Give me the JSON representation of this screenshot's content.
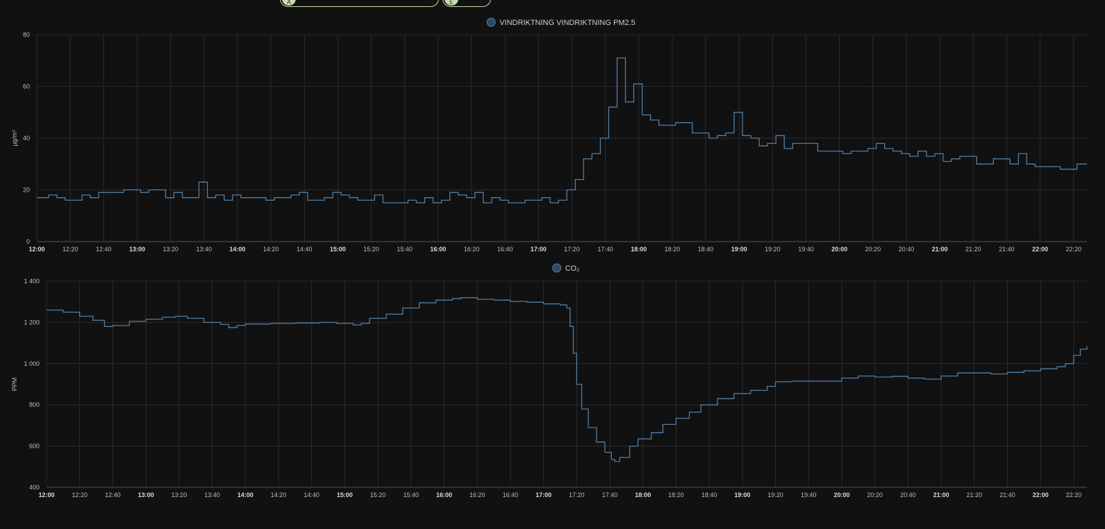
{
  "top_chips": [
    {
      "label": "A",
      "color": "#c9ddb0"
    },
    {
      "label": "E",
      "color": "#c9ddb0"
    }
  ],
  "chart_data": [
    {
      "type": "line",
      "step": true,
      "legend": "VINDRIKTNING VINDRIKTNING PM2.5",
      "ylabel": "µg/m³",
      "ylim": [
        0,
        80
      ],
      "yticks": [
        0,
        20,
        40,
        60,
        80
      ],
      "ytick_labels": [
        "0",
        "20",
        "40",
        "60",
        "80"
      ],
      "x_range": [
        "12:00",
        "22:28"
      ],
      "xticks": [
        "12:00",
        "12:20",
        "12:40",
        "13:00",
        "13:20",
        "13:40",
        "14:00",
        "14:20",
        "14:40",
        "15:00",
        "15:20",
        "15:40",
        "16:00",
        "16:20",
        "16:40",
        "17:00",
        "17:20",
        "17:40",
        "18:00",
        "18:20",
        "18:40",
        "19:00",
        "19:20",
        "19:40",
        "20:00",
        "20:20",
        "20:40",
        "21:00",
        "21:20",
        "21:40",
        "22:00",
        "22:20"
      ],
      "color": "#4f7fa8",
      "series": [
        {
          "values": [
            [
              "12:00",
              17
            ],
            [
              "12:07",
              18
            ],
            [
              "12:12",
              17
            ],
            [
              "12:17",
              16
            ],
            [
              "12:27",
              18
            ],
            [
              "12:32",
              17
            ],
            [
              "12:37",
              19
            ],
            [
              "12:52",
              20
            ],
            [
              "13:02",
              19
            ],
            [
              "13:07",
              20
            ],
            [
              "13:17",
              17
            ],
            [
              "13:22",
              19
            ],
            [
              "13:27",
              17
            ],
            [
              "13:37",
              23
            ],
            [
              "13:42",
              17
            ],
            [
              "13:47",
              18
            ],
            [
              "13:52",
              16
            ],
            [
              "13:57",
              18
            ],
            [
              "14:02",
              17
            ],
            [
              "14:17",
              16
            ],
            [
              "14:22",
              17
            ],
            [
              "14:32",
              18
            ],
            [
              "14:37",
              19
            ],
            [
              "14:42",
              16
            ],
            [
              "14:52",
              17
            ],
            [
              "14:57",
              19
            ],
            [
              "15:02",
              18
            ],
            [
              "15:07",
              17
            ],
            [
              "15:12",
              16
            ],
            [
              "15:22",
              18
            ],
            [
              "15:27",
              15
            ],
            [
              "15:42",
              16
            ],
            [
              "15:47",
              15
            ],
            [
              "15:52",
              17
            ],
            [
              "15:57",
              15
            ],
            [
              "16:02",
              16
            ],
            [
              "16:07",
              19
            ],
            [
              "16:12",
              18
            ],
            [
              "16:17",
              17
            ],
            [
              "16:22",
              19
            ],
            [
              "16:27",
              15
            ],
            [
              "16:32",
              17
            ],
            [
              "16:37",
              16
            ],
            [
              "16:42",
              15
            ],
            [
              "16:52",
              16
            ],
            [
              "17:02",
              17
            ],
            [
              "17:07",
              15
            ],
            [
              "17:12",
              16
            ],
            [
              "17:17",
              20
            ],
            [
              "17:22",
              24
            ],
            [
              "17:27",
              32
            ],
            [
              "17:32",
              34
            ],
            [
              "17:37",
              40
            ],
            [
              "17:42",
              52
            ],
            [
              "17:47",
              71
            ],
            [
              "17:52",
              54
            ],
            [
              "17:57",
              61
            ],
            [
              "18:02",
              49
            ],
            [
              "18:07",
              47
            ],
            [
              "18:12",
              45
            ],
            [
              "18:22",
              46
            ],
            [
              "18:32",
              42
            ],
            [
              "18:42",
              40
            ],
            [
              "18:47",
              41
            ],
            [
              "18:52",
              42
            ],
            [
              "18:57",
              50
            ],
            [
              "19:02",
              41
            ],
            [
              "19:07",
              40
            ],
            [
              "19:12",
              37
            ],
            [
              "19:17",
              38
            ],
            [
              "19:22",
              41
            ],
            [
              "19:27",
              36
            ],
            [
              "19:32",
              38
            ],
            [
              "19:47",
              35
            ],
            [
              "20:02",
              34
            ],
            [
              "20:07",
              35
            ],
            [
              "20:17",
              36
            ],
            [
              "20:22",
              38
            ],
            [
              "20:27",
              36
            ],
            [
              "20:32",
              35
            ],
            [
              "20:37",
              34
            ],
            [
              "20:42",
              33
            ],
            [
              "20:47",
              35
            ],
            [
              "20:52",
              33
            ],
            [
              "20:57",
              34
            ],
            [
              "21:02",
              31
            ],
            [
              "21:07",
              32
            ],
            [
              "21:12",
              33
            ],
            [
              "21:22",
              30
            ],
            [
              "21:32",
              32
            ],
            [
              "21:42",
              30
            ],
            [
              "21:47",
              34
            ],
            [
              "21:52",
              30
            ],
            [
              "21:57",
              29
            ],
            [
              "22:12",
              28
            ],
            [
              "22:22",
              30
            ],
            [
              "22:28",
              30
            ]
          ]
        }
      ]
    },
    {
      "type": "line",
      "step": true,
      "legend": "CO₂",
      "ylabel": "PPM",
      "ylim": [
        400,
        1400
      ],
      "yticks": [
        400,
        600,
        800,
        1000,
        1200,
        1400
      ],
      "ytick_labels": [
        "400",
        "600",
        "800",
        "1 000",
        "1 200",
        "1 400"
      ],
      "x_range": [
        "12:00",
        "22:28"
      ],
      "xticks": [
        "12:00",
        "12:20",
        "12:40",
        "13:00",
        "13:20",
        "13:40",
        "14:00",
        "14:20",
        "14:40",
        "15:00",
        "15:20",
        "15:40",
        "16:00",
        "16:20",
        "16:40",
        "17:00",
        "17:20",
        "17:40",
        "18:00",
        "18:20",
        "18:40",
        "19:00",
        "19:20",
        "19:40",
        "20:00",
        "20:20",
        "20:40",
        "21:00",
        "21:20",
        "21:40",
        "22:00",
        "22:20"
      ],
      "color": "#4f7fa8",
      "series": [
        {
          "values": [
            [
              "12:00",
              1260
            ],
            [
              "12:10",
              1250
            ],
            [
              "12:20",
              1230
            ],
            [
              "12:28",
              1210
            ],
            [
              "12:35",
              1180
            ],
            [
              "12:40",
              1185
            ],
            [
              "12:50",
              1205
            ],
            [
              "13:00",
              1215
            ],
            [
              "13:10",
              1225
            ],
            [
              "13:18",
              1230
            ],
            [
              "13:25",
              1220
            ],
            [
              "13:35",
              1200
            ],
            [
              "13:45",
              1190
            ],
            [
              "13:50",
              1175
            ],
            [
              "13:55",
              1185
            ],
            [
              "14:00",
              1192
            ],
            [
              "14:15",
              1195
            ],
            [
              "14:30",
              1197
            ],
            [
              "14:45",
              1200
            ],
            [
              "14:55",
              1195
            ],
            [
              "15:05",
              1188
            ],
            [
              "15:10",
              1195
            ],
            [
              "15:15",
              1220
            ],
            [
              "15:25",
              1240
            ],
            [
              "15:35",
              1270
            ],
            [
              "15:45",
              1295
            ],
            [
              "15:55",
              1308
            ],
            [
              "16:05",
              1315
            ],
            [
              "16:10",
              1320
            ],
            [
              "16:20",
              1312
            ],
            [
              "16:30",
              1308
            ],
            [
              "16:40",
              1302
            ],
            [
              "16:50",
              1298
            ],
            [
              "17:00",
              1290
            ],
            [
              "17:10",
              1285
            ],
            [
              "17:14",
              1270
            ],
            [
              "17:16",
              1180
            ],
            [
              "17:18",
              1050
            ],
            [
              "17:20",
              900
            ],
            [
              "17:23",
              780
            ],
            [
              "17:27",
              690
            ],
            [
              "17:32",
              620
            ],
            [
              "17:37",
              570
            ],
            [
              "17:41",
              535
            ],
            [
              "17:43",
              525
            ],
            [
              "17:46",
              545
            ],
            [
              "17:52",
              600
            ],
            [
              "17:57",
              635
            ],
            [
              "18:05",
              665
            ],
            [
              "18:12",
              705
            ],
            [
              "18:20",
              735
            ],
            [
              "18:28",
              765
            ],
            [
              "18:35",
              800
            ],
            [
              "18:45",
              830
            ],
            [
              "18:55",
              855
            ],
            [
              "19:05",
              870
            ],
            [
              "19:15",
              890
            ],
            [
              "19:20",
              912
            ],
            [
              "19:30",
              915
            ],
            [
              "19:45",
              915
            ],
            [
              "20:00",
              930
            ],
            [
              "20:10",
              940
            ],
            [
              "20:20",
              935
            ],
            [
              "20:30",
              938
            ],
            [
              "20:40",
              930
            ],
            [
              "20:50",
              925
            ],
            [
              "21:00",
              940
            ],
            [
              "21:10",
              955
            ],
            [
              "21:20",
              955
            ],
            [
              "21:30",
              950
            ],
            [
              "21:40",
              958
            ],
            [
              "21:50",
              965
            ],
            [
              "22:00",
              975
            ],
            [
              "22:10",
              985
            ],
            [
              "22:15",
              1000
            ],
            [
              "22:20",
              1040
            ],
            [
              "22:24",
              1070
            ],
            [
              "22:28",
              1085
            ]
          ]
        }
      ]
    }
  ]
}
